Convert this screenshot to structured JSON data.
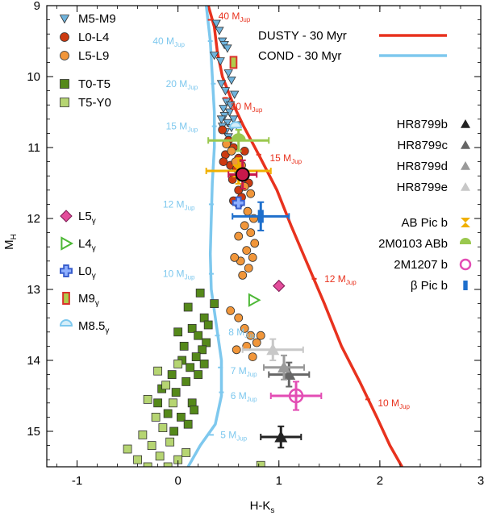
{
  "chart_data": {
    "type": "scatter",
    "xlabel": "H-K",
    "xlabel_sub": "s",
    "ylabel": "M",
    "ylabel_sub": "H",
    "xlim": [
      -1.3,
      3.0
    ],
    "ylim": [
      15.5,
      9.0
    ],
    "y_inverted": true,
    "xticks": [
      -1,
      0,
      1,
      2,
      3
    ],
    "yticks": [
      9,
      10,
      11,
      12,
      13,
      14,
      15
    ],
    "grid": false,
    "models": [
      {
        "name": "DUSTY - 30 Myr",
        "color": "#e8321e",
        "points": [
          [
            0.3,
            9.0
          ],
          [
            0.36,
            9.3
          ],
          [
            0.39,
            9.65
          ],
          [
            0.44,
            10.0
          ],
          [
            0.55,
            10.4
          ],
          [
            0.65,
            10.7
          ],
          [
            0.8,
            11.1
          ],
          [
            0.98,
            11.6
          ],
          [
            1.12,
            12.1
          ],
          [
            1.3,
            12.7
          ],
          [
            1.45,
            13.2
          ],
          [
            1.62,
            13.8
          ],
          [
            1.8,
            14.3
          ],
          [
            1.97,
            14.8
          ],
          [
            2.1,
            15.2
          ],
          [
            2.22,
            15.5
          ]
        ],
        "mass_labels": [
          {
            "text": "40 M",
            "sub": "Jup",
            "x": 0.32,
            "y": 9.2,
            "lx": 0.4,
            "ly": 9.15
          },
          {
            "text": "20 M",
            "sub": "Jup",
            "x": 0.47,
            "y": 10.3,
            "lx": 0.52,
            "ly": 10.42
          },
          {
            "text": "15 M",
            "sub": "Jup",
            "x": 0.8,
            "y": 11.1,
            "lx": 0.91,
            "ly": 11.15
          },
          {
            "text": "12 M",
            "sub": "Jup",
            "x": 1.35,
            "y": 12.85,
            "lx": 1.45,
            "ly": 12.85
          },
          {
            "text": "10 M",
            "sub": "Jup",
            "x": 1.88,
            "y": 14.55,
            "lx": 1.98,
            "ly": 14.6
          }
        ]
      },
      {
        "name": "COND - 30 Myr",
        "color": "#7ec8ee",
        "points": [
          [
            0.28,
            9.0
          ],
          [
            0.32,
            9.5
          ],
          [
            0.34,
            10.0
          ],
          [
            0.36,
            10.5
          ],
          [
            0.36,
            11.0
          ],
          [
            0.34,
            11.5
          ],
          [
            0.33,
            12.0
          ],
          [
            0.32,
            12.5
          ],
          [
            0.33,
            13.0
          ],
          [
            0.38,
            13.5
          ],
          [
            0.43,
            14.0
          ],
          [
            0.43,
            14.5
          ],
          [
            0.37,
            14.9
          ],
          [
            0.22,
            15.2
          ],
          [
            0.1,
            15.5
          ]
        ],
        "mass_labels": [
          {
            "text": "40 M",
            "sub": "Jup",
            "x": 0.32,
            "y": 9.5,
            "lx": -0.25,
            "ly": 9.5
          },
          {
            "text": "20 M",
            "sub": "Jup",
            "x": 0.35,
            "y": 10.1,
            "lx": -0.12,
            "ly": 10.1
          },
          {
            "text": "15 M",
            "sub": "Jup",
            "x": 0.36,
            "y": 10.7,
            "lx": -0.12,
            "ly": 10.7
          },
          {
            "text": "12 M",
            "sub": "Jup",
            "x": 0.33,
            "y": 11.8,
            "lx": -0.15,
            "ly": 11.8
          },
          {
            "text": "10 M",
            "sub": "Jup",
            "x": 0.33,
            "y": 12.78,
            "lx": -0.15,
            "ly": 12.78
          },
          {
            "text": "8 M",
            "sub": "Jup",
            "x": 0.39,
            "y": 13.65,
            "lx": 0.5,
            "ly": 13.6
          },
          {
            "text": "7 M",
            "sub": "Jup",
            "x": 0.42,
            "y": 14.1,
            "lx": 0.52,
            "ly": 14.15
          },
          {
            "text": "6 M",
            "sub": "Jup",
            "x": 0.43,
            "y": 14.45,
            "lx": 0.52,
            "ly": 14.5
          },
          {
            "text": "5 M",
            "sub": "Jup",
            "x": 0.33,
            "y": 15.05,
            "lx": 0.42,
            "ly": 15.05
          }
        ]
      }
    ],
    "field_series": [
      {
        "name": "M5-M9",
        "marker": "triangle-down",
        "color": "#6fb3dc",
        "points": [
          [
            0.38,
            9.25
          ],
          [
            0.41,
            9.35
          ],
          [
            0.44,
            9.5
          ],
          [
            0.46,
            9.55
          ],
          [
            0.49,
            9.6
          ],
          [
            0.36,
            9.7
          ],
          [
            0.42,
            9.78
          ],
          [
            0.5,
            9.95
          ],
          [
            0.53,
            10.05
          ],
          [
            0.43,
            10.1
          ],
          [
            0.47,
            10.2
          ],
          [
            0.56,
            10.25
          ],
          [
            0.48,
            10.35
          ],
          [
            0.52,
            10.4
          ],
          [
            0.45,
            10.45
          ],
          [
            0.51,
            10.5
          ],
          [
            0.46,
            10.55
          ],
          [
            0.55,
            10.6
          ],
          [
            0.49,
            10.65
          ],
          [
            0.44,
            10.7
          ],
          [
            0.53,
            10.72
          ],
          [
            0.47,
            10.78
          ],
          [
            0.58,
            10.68
          ],
          [
            0.5,
            10.85
          ],
          [
            0.43,
            10.6
          ]
        ]
      },
      {
        "name": "L0-L4",
        "marker": "circle",
        "color": "#cc3a10",
        "points": [
          [
            0.44,
            10.75
          ],
          [
            0.5,
            10.9
          ],
          [
            0.55,
            11.0
          ],
          [
            0.47,
            11.1
          ],
          [
            0.6,
            11.15
          ],
          [
            0.52,
            11.25
          ],
          [
            0.58,
            11.3
          ],
          [
            0.62,
            11.35
          ],
          [
            0.45,
            11.2
          ],
          [
            0.66,
            11.05
          ],
          [
            0.54,
            11.45
          ],
          [
            0.7,
            11.5
          ],
          [
            0.6,
            11.6
          ],
          [
            0.63,
            11.7
          ],
          [
            0.55,
            11.75
          ]
        ]
      },
      {
        "name": "L5-L9",
        "marker": "circle",
        "color": "#f1963a",
        "points": [
          [
            0.48,
            10.95
          ],
          [
            0.53,
            11.05
          ],
          [
            0.57,
            11.2
          ],
          [
            0.63,
            11.25
          ],
          [
            0.66,
            11.55
          ],
          [
            0.72,
            11.65
          ],
          [
            0.6,
            11.8
          ],
          [
            0.69,
            11.9
          ],
          [
            0.75,
            12.0
          ],
          [
            0.66,
            12.1
          ],
          [
            0.72,
            12.2
          ],
          [
            0.6,
            12.25
          ],
          [
            0.76,
            12.35
          ],
          [
            0.68,
            12.45
          ],
          [
            0.74,
            12.55
          ],
          [
            0.62,
            12.6
          ],
          [
            0.7,
            12.7
          ],
          [
            0.64,
            12.8
          ],
          [
            0.56,
            12.55
          ],
          [
            0.6,
            13.4
          ],
          [
            0.66,
            13.55
          ],
          [
            0.72,
            13.65
          ],
          [
            0.78,
            13.75
          ],
          [
            0.68,
            13.8
          ],
          [
            0.58,
            13.85
          ],
          [
            0.74,
            13.95
          ],
          [
            0.82,
            13.65
          ],
          [
            0.52,
            13.3
          ]
        ]
      },
      {
        "name": "T0-T5",
        "marker": "square",
        "color": "#55891a",
        "points": [
          [
            0.22,
            13.05
          ],
          [
            0.1,
            13.25
          ],
          [
            0.26,
            13.4
          ],
          [
            0.14,
            13.55
          ],
          [
            0.0,
            13.6
          ],
          [
            0.2,
            13.65
          ],
          [
            0.28,
            13.75
          ],
          [
            0.06,
            13.8
          ],
          [
            0.24,
            13.85
          ],
          [
            0.18,
            13.95
          ],
          [
            0.04,
            14.0
          ],
          [
            0.26,
            14.05
          ],
          [
            0.12,
            14.1
          ],
          [
            -0.06,
            14.2
          ],
          [
            0.2,
            14.2
          ],
          [
            -0.16,
            14.4
          ],
          [
            0.08,
            14.3
          ],
          [
            -0.02,
            14.45
          ],
          [
            0.14,
            14.6
          ],
          [
            -0.2,
            14.6
          ],
          [
            -0.1,
            14.75
          ],
          [
            0.03,
            14.8
          ],
          [
            0.1,
            14.9
          ],
          [
            -0.04,
            15.0
          ],
          [
            0.36,
            13.2
          ],
          [
            0.3,
            13.5
          ],
          [
            0.16,
            14.7
          ]
        ]
      },
      {
        "name": "T5-Y0",
        "marker": "square",
        "color": "#b6d572",
        "points": [
          [
            -0.2,
            14.15
          ],
          [
            -0.12,
            14.35
          ],
          [
            -0.3,
            14.55
          ],
          [
            -0.05,
            14.6
          ],
          [
            -0.22,
            14.8
          ],
          [
            -0.15,
            14.95
          ],
          [
            -0.35,
            15.05
          ],
          [
            -0.08,
            15.15
          ],
          [
            -0.26,
            15.2
          ],
          [
            -0.5,
            15.25
          ],
          [
            -0.18,
            15.35
          ],
          [
            -0.4,
            15.4
          ],
          [
            0.0,
            15.4
          ],
          [
            -0.1,
            15.5
          ],
          [
            0.08,
            15.3
          ],
          [
            -0.3,
            15.5
          ],
          [
            0.82,
            15.48
          ],
          [
            0.0,
            14.05
          ]
        ]
      }
    ],
    "young_objects": [
      {
        "name": "L5",
        "sub": "γ",
        "marker": "diamond",
        "color": "#e34d9b",
        "x": 1.0,
        "y": 12.95
      },
      {
        "name": "L4",
        "sub": "γ",
        "marker": "triangle-right",
        "color": "#4db836",
        "x": 0.75,
        "y": 13.15
      },
      {
        "name": "L0",
        "sub": "γ",
        "marker": "cross",
        "color": "#3a5fcd",
        "x": 0.6,
        "y": 11.78
      },
      {
        "name": "M9",
        "sub": "γ",
        "marker": "rect",
        "color": "#d9312c",
        "x": 0.55,
        "y": 9.8
      },
      {
        "name": "M8.5",
        "sub": "γ",
        "marker": "semicircle",
        "color": "#7ec8ee",
        "x": 0.57,
        "y": 10.72
      }
    ],
    "companions": [
      {
        "name": "HR8799b",
        "marker": "triangle-up",
        "color": "#222222",
        "x": 1.02,
        "y": 15.08,
        "xerr": 0.2,
        "yerr": 0.15
      },
      {
        "name": "HR8799c",
        "marker": "triangle-up",
        "color": "#666666",
        "x": 1.1,
        "y": 14.2,
        "xerr": 0.2,
        "yerr": 0.17
      },
      {
        "name": "HR8799d",
        "marker": "triangle-up",
        "color": "#9a9a9a",
        "x": 1.05,
        "y": 14.1,
        "xerr": 0.2,
        "yerr": 0.17
      },
      {
        "name": "HR8799e",
        "marker": "triangle-up",
        "color": "#c8c8c8",
        "x": 0.94,
        "y": 13.85,
        "xerr": 0.3,
        "yerr": 0.15
      },
      {
        "name": "AB Pic b",
        "marker": "hourglass",
        "color": "#f0b000",
        "x": 0.6,
        "y": 11.33,
        "xerr": 0.32,
        "yerr": 0.18
      },
      {
        "name": "2M0103 ABb",
        "marker": "semicircle",
        "color": "#9ac84e",
        "x": 0.6,
        "y": 10.9,
        "xerr": 0.3,
        "yerr": 0.15
      },
      {
        "name": "2M1207 b",
        "marker": "ring",
        "color": "#e34db4",
        "x": 1.17,
        "y": 14.5,
        "xerr": 0.25,
        "yerr": 0.2
      },
      {
        "name": "β Pic b",
        "marker": "bar",
        "color": "#1e6fcc",
        "x": 0.82,
        "y": 11.97,
        "xerr": 0.28,
        "yerr": 0.2
      },
      {
        "name": "",
        "marker": "circle-big",
        "color": "#c8184a",
        "x": 0.64,
        "y": 11.38,
        "xerr": 0.14,
        "yerr": 0.2
      }
    ],
    "legend_field": {
      "placement": "top-left"
    },
    "legend_young": {
      "placement": "left"
    },
    "legend_models": {
      "placement": "top-right"
    },
    "legend_companions": {
      "placement": "right"
    }
  }
}
